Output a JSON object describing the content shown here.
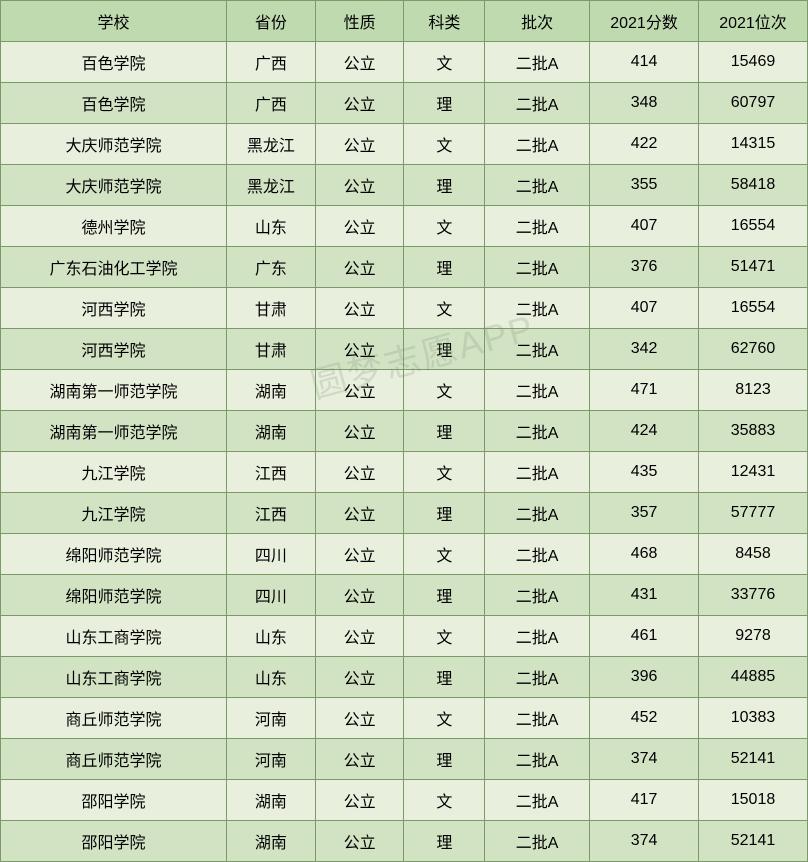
{
  "table": {
    "columns": [
      "学校",
      "省份",
      "性质",
      "科类",
      "批次",
      "2021分数",
      "2021位次"
    ],
    "rows": [
      [
        "百色学院",
        "广西",
        "公立",
        "文",
        "二批A",
        "414",
        "15469"
      ],
      [
        "百色学院",
        "广西",
        "公立",
        "理",
        "二批A",
        "348",
        "60797"
      ],
      [
        "大庆师范学院",
        "黑龙江",
        "公立",
        "文",
        "二批A",
        "422",
        "14315"
      ],
      [
        "大庆师范学院",
        "黑龙江",
        "公立",
        "理",
        "二批A",
        "355",
        "58418"
      ],
      [
        "德州学院",
        "山东",
        "公立",
        "文",
        "二批A",
        "407",
        "16554"
      ],
      [
        "广东石油化工学院",
        "广东",
        "公立",
        "理",
        "二批A",
        "376",
        "51471"
      ],
      [
        "河西学院",
        "甘肃",
        "公立",
        "文",
        "二批A",
        "407",
        "16554"
      ],
      [
        "河西学院",
        "甘肃",
        "公立",
        "理",
        "二批A",
        "342",
        "62760"
      ],
      [
        "湖南第一师范学院",
        "湖南",
        "公立",
        "文",
        "二批A",
        "471",
        "8123"
      ],
      [
        "湖南第一师范学院",
        "湖南",
        "公立",
        "理",
        "二批A",
        "424",
        "35883"
      ],
      [
        "九江学院",
        "江西",
        "公立",
        "文",
        "二批A",
        "435",
        "12431"
      ],
      [
        "九江学院",
        "江西",
        "公立",
        "理",
        "二批A",
        "357",
        "57777"
      ],
      [
        "绵阳师范学院",
        "四川",
        "公立",
        "文",
        "二批A",
        "468",
        "8458"
      ],
      [
        "绵阳师范学院",
        "四川",
        "公立",
        "理",
        "二批A",
        "431",
        "33776"
      ],
      [
        "山东工商学院",
        "山东",
        "公立",
        "文",
        "二批A",
        "461",
        "9278"
      ],
      [
        "山东工商学院",
        "山东",
        "公立",
        "理",
        "二批A",
        "396",
        "44885"
      ],
      [
        "商丘师范学院",
        "河南",
        "公立",
        "文",
        "二批A",
        "452",
        "10383"
      ],
      [
        "商丘师范学院",
        "河南",
        "公立",
        "理",
        "二批A",
        "374",
        "52141"
      ],
      [
        "邵阳学院",
        "湖南",
        "公立",
        "文",
        "二批A",
        "417",
        "15018"
      ],
      [
        "邵阳学院",
        "湖南",
        "公立",
        "理",
        "二批A",
        "374",
        "52141"
      ]
    ],
    "header_bg": "#c0dab0",
    "row_odd_bg": "#e8f0dd",
    "row_even_bg": "#d2e3c4",
    "border_color": "#7a9a6a",
    "text_color": "#000000",
    "font_size": 16
  },
  "watermark": {
    "text": "圆梦志愿APP",
    "color": "rgba(120,140,110,0.22)",
    "font_size": 36,
    "rotation": -15
  }
}
